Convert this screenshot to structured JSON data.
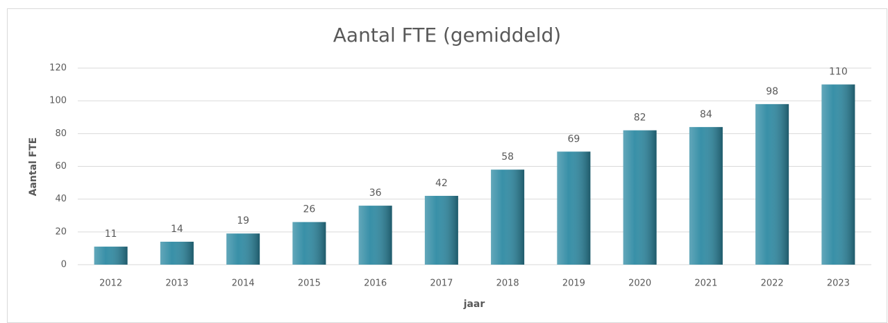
{
  "chart_data": {
    "type": "bar",
    "title": "Aantal FTE (gemiddeld)",
    "x_label": "jaar",
    "y_label": "Aantal FTE",
    "categories": [
      "2012",
      "2013",
      "2014",
      "2015",
      "2016",
      "2017",
      "2018",
      "2019",
      "2020",
      "2021",
      "2022",
      "2023"
    ],
    "values": [
      11,
      14,
      19,
      26,
      36,
      42,
      58,
      69,
      82,
      84,
      98,
      110
    ],
    "color": "#2e8aa3",
    "ylim": [
      0,
      120
    ],
    "yticks": [
      0,
      20,
      40,
      60,
      80,
      100,
      120
    ],
    "grid": true
  }
}
